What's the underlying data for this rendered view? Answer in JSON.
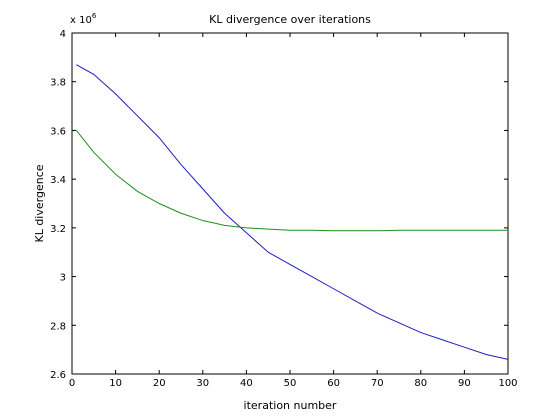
{
  "chart_data": {
    "type": "line",
    "title": "KL divergence over iterations",
    "xlabel": "iteration number",
    "ylabel": "KL divergence",
    "xlim": [
      0,
      100
    ],
    "ylim": [
      2.6,
      4.0
    ],
    "y_exponent_label": "x 10",
    "y_exponent_power": "6",
    "grid": false,
    "legend": "none",
    "x_ticks": [
      "0",
      "10",
      "20",
      "30",
      "40",
      "50",
      "60",
      "70",
      "80",
      "90",
      "100"
    ],
    "y_ticks": [
      "2.6",
      "2.8",
      "3",
      "3.2",
      "3.4",
      "3.6",
      "3.8",
      "4"
    ],
    "series": [
      {
        "color": "#1f1fbf",
        "x": [
          1,
          5,
          10,
          15,
          20,
          25,
          30,
          35,
          40,
          45,
          50,
          55,
          60,
          65,
          70,
          75,
          80,
          85,
          90,
          95,
          100
        ],
        "values": [
          3.87,
          3.83,
          3.75,
          3.66,
          3.57,
          3.46,
          3.36,
          3.26,
          3.18,
          3.1,
          3.05,
          3.0,
          2.95,
          2.9,
          2.85,
          2.81,
          2.77,
          2.74,
          2.71,
          2.68,
          2.66
        ]
      },
      {
        "color": "#1f8f1f",
        "x": [
          1,
          5,
          10,
          15,
          20,
          25,
          30,
          35,
          40,
          45,
          50,
          55,
          60,
          65,
          70,
          75,
          80,
          85,
          90,
          95,
          100
        ],
        "values": [
          3.6,
          3.51,
          3.42,
          3.35,
          3.3,
          3.26,
          3.23,
          3.21,
          3.2,
          3.195,
          3.19,
          3.19,
          3.188,
          3.188,
          3.188,
          3.19,
          3.19,
          3.19,
          3.19,
          3.19,
          3.19
        ]
      }
    ]
  }
}
